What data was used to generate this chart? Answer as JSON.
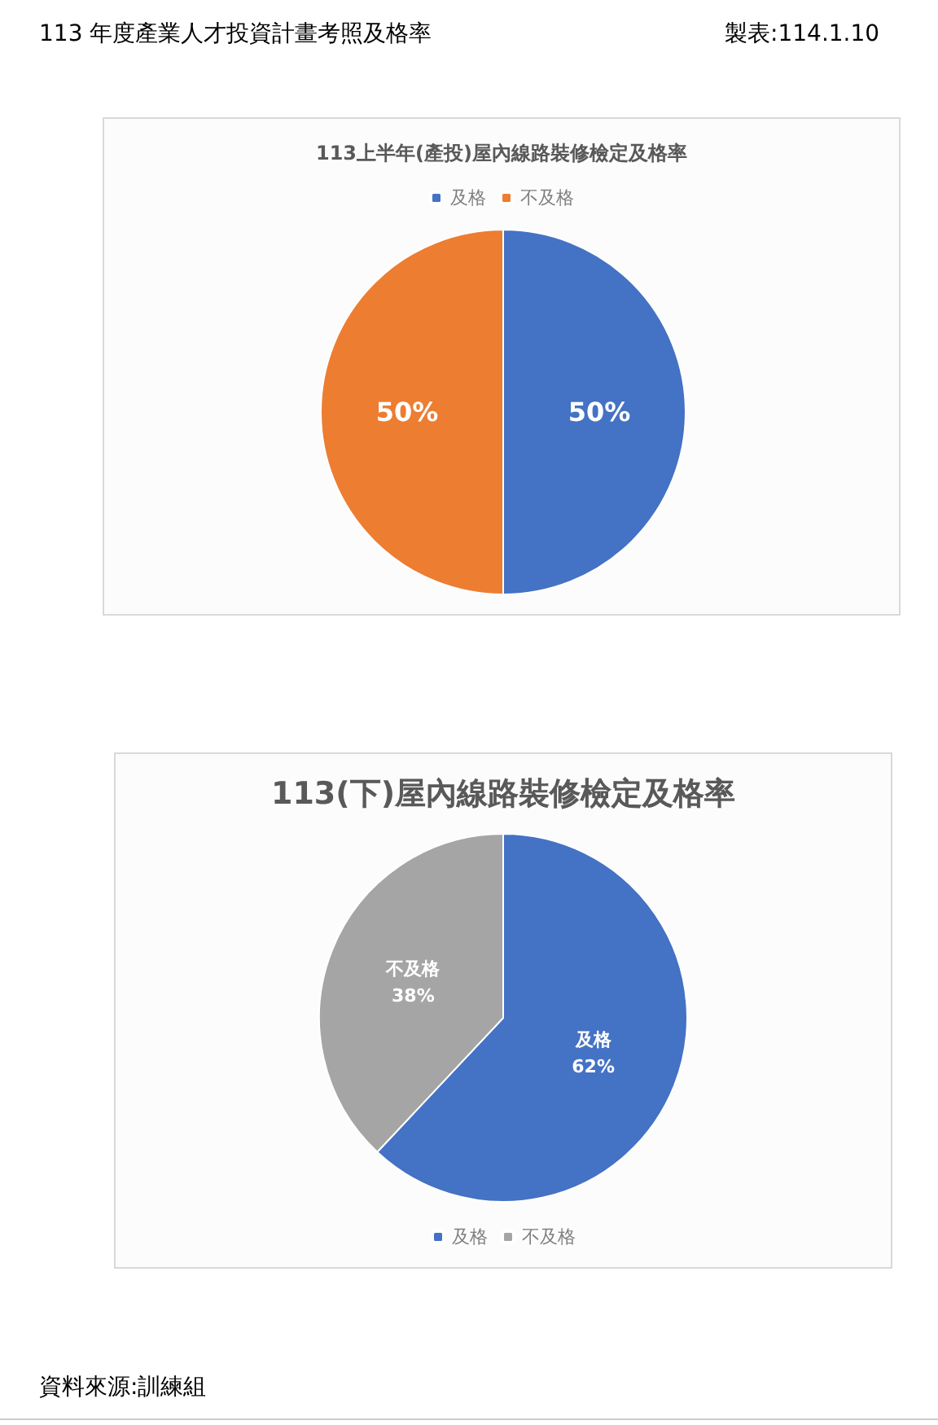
{
  "chart_data": [
    {
      "type": "pie",
      "title": "113上半年(產投)屋內線路裝修檢定及格率",
      "categories": [
        "及格",
        "不及格"
      ],
      "values": [
        50,
        50
      ],
      "colors": [
        "#4472c4",
        "#ed7d31"
      ],
      "value_labels": [
        "50%",
        "50%"
      ],
      "legend": "top",
      "annotations": [
        "113 年度產業人才投資計畫考照及格率",
        "製表:114.1.10"
      ]
    },
    {
      "type": "pie",
      "title": "113(下)屋內線路裝修檢定及格率",
      "categories": [
        "及格",
        "不及格"
      ],
      "values": [
        62,
        38
      ],
      "colors": [
        "#4472c4",
        "#a5a5a5"
      ],
      "value_labels": [
        "及格\n62%",
        "不及格\n38%"
      ],
      "legend": "bottom",
      "annotations": [
        "資料來源:訓練組"
      ]
    }
  ]
}
